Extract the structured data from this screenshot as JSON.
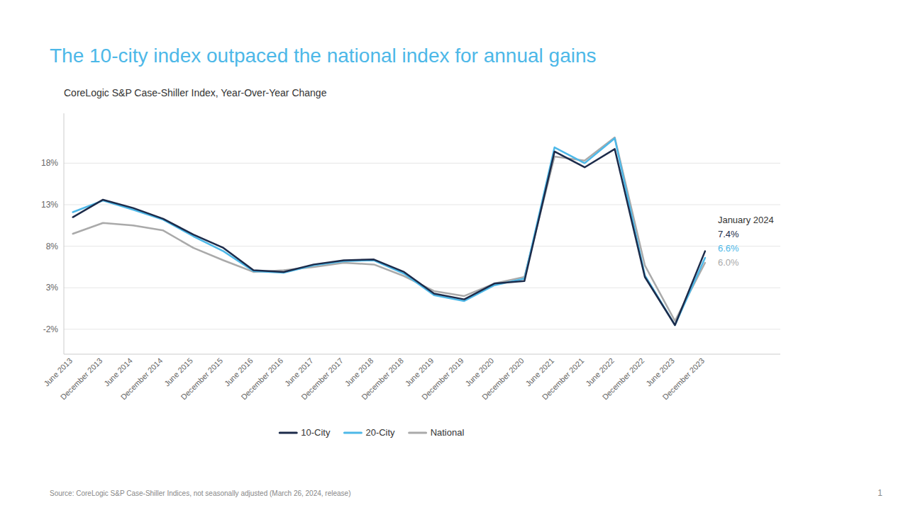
{
  "chart_data": {
    "type": "line",
    "title": "The 10-city index outpaced the national index for annual gains",
    "subtitle": "CoreLogic S&P Case-Shiller Index, Year-Over-Year Change",
    "source": "Source: CoreLogic S&P Case-Shiller Indices, not seasonally adjusted (March 26, 2024,  release)",
    "page_number": "1",
    "annotations": [
      "January 2024",
      "7.4%",
      "6.6%",
      "6.0%"
    ],
    "categories": [
      "June 2013",
      "December 2013",
      "June 2014",
      "December 2014",
      "June 2015",
      "December 2015",
      "June 2016",
      "December 2016",
      "June 2017",
      "December 2017",
      "June 2018",
      "December 2018",
      "June 2019",
      "December 2019",
      "June 2020",
      "December 2020",
      "June 2021",
      "December 2021",
      "June 2022",
      "December 2022",
      "June 2023",
      "December 2023"
    ],
    "series": [
      {
        "name": "10-City",
        "color": "#1c2b4a",
        "values": [
          11.5,
          13.6,
          12.6,
          11.3,
          9.4,
          7.8,
          5.1,
          4.9,
          5.8,
          6.3,
          6.4,
          4.9,
          2.3,
          1.6,
          3.5,
          3.8,
          19.4,
          17.5,
          19.7,
          4.3,
          -1.5,
          7.4
        ]
      },
      {
        "name": "20-City",
        "color": "#4db8e8",
        "values": [
          12.1,
          13.5,
          12.4,
          11.2,
          9.2,
          7.4,
          5.0,
          4.8,
          5.7,
          6.2,
          6.3,
          4.7,
          2.1,
          1.4,
          3.3,
          4.1,
          19.9,
          18.0,
          21.0,
          4.5,
          -1.5,
          6.6
        ]
      },
      {
        "name": "National",
        "color": "#aaaaaa",
        "values": [
          9.5,
          10.8,
          10.5,
          9.9,
          7.8,
          6.3,
          4.9,
          5.1,
          5.5,
          6.0,
          5.8,
          4.4,
          2.6,
          2.0,
          3.5,
          4.3,
          18.8,
          18.3,
          21.1,
          5.7,
          -1.0,
          6.0
        ]
      }
    ],
    "ylim": [
      -5,
      24
    ],
    "yticks": [
      {
        "value": -2,
        "label": "-2%"
      },
      {
        "value": 3,
        "label": "3%"
      },
      {
        "value": 8,
        "label": "8%"
      },
      {
        "value": 13,
        "label": "13%"
      },
      {
        "value": 18,
        "label": "18%"
      }
    ],
    "grid": true,
    "legend": "bottom",
    "title_color": "#4db8e8"
  }
}
